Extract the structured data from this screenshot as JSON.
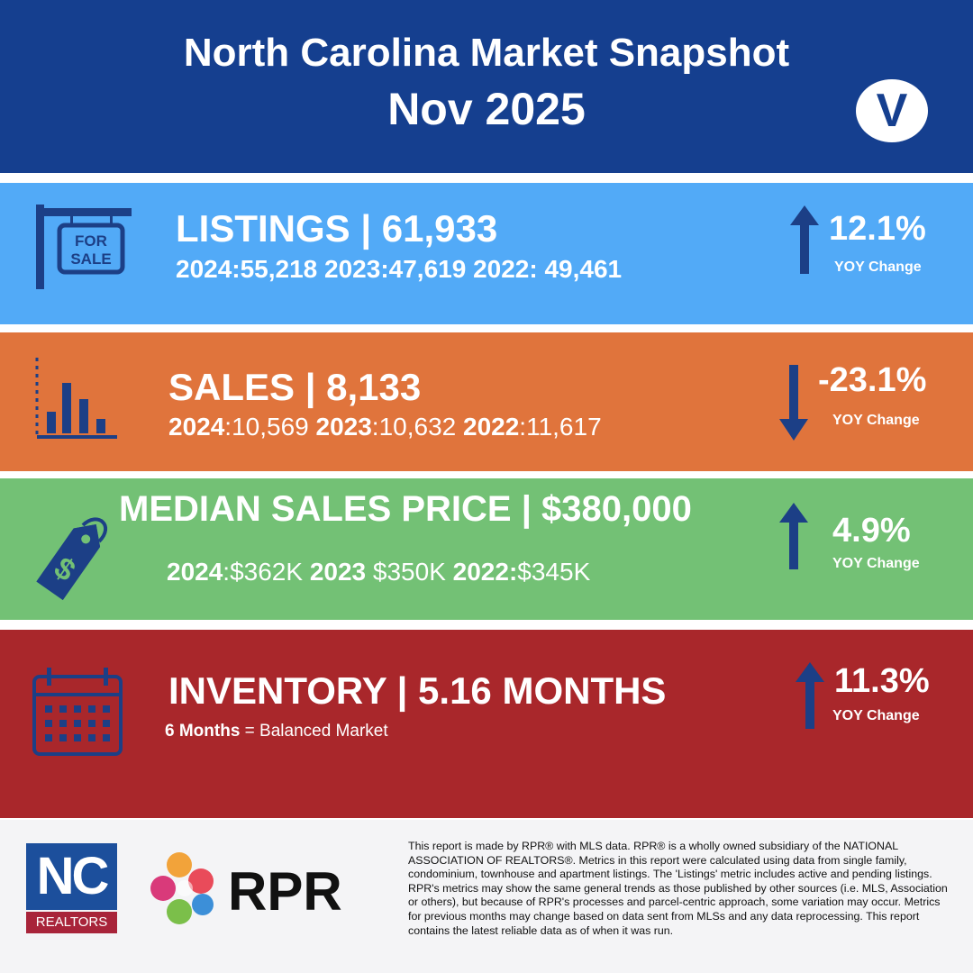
{
  "header": {
    "title": "North Carolina Market Snapshot",
    "date": "Nov 2025",
    "logo_letter": "V"
  },
  "listings": {
    "headline": "LISTINGS | 61,933",
    "history": "2024:55,218 2023:47,619 2022: 49,461",
    "change": "12.1%",
    "change_label": "YOY Change",
    "direction": "up",
    "icon": "for-sale-sign-icon",
    "sign_line1": "FOR",
    "sign_line2": "SALE",
    "color": "#52aaf7"
  },
  "sales": {
    "headline": "SALES | 8,133",
    "history": [
      {
        "year": "2024",
        "value": ":10,569 "
      },
      {
        "year": "2023",
        "value": ":10,632 "
      },
      {
        "year": "2022",
        "value": ":11,617"
      }
    ],
    "change": "-23.1%",
    "change_label": "YOY Change",
    "direction": "down",
    "icon": "bar-chart-icon",
    "color": "#e0743c"
  },
  "median_price": {
    "headline": "MEDIAN SALES PRICE | $380,000",
    "history": [
      {
        "year": "2024",
        "value": ":$362K "
      },
      {
        "year": "2023",
        "value": " $350K  "
      },
      {
        "year": "2022:",
        "value": "$345K"
      }
    ],
    "change": "4.9%",
    "change_label": "YOY Change",
    "direction": "up",
    "icon": "price-tag-icon",
    "tag_symbol": "$",
    "color": "#73c175"
  },
  "inventory": {
    "headline": "INVENTORY | 5.16 MONTHS",
    "note_bold": "6 Months",
    "note_rest": " = Balanced Market",
    "change": "11.3%",
    "change_label": "YOY Change",
    "direction": "up",
    "icon": "calendar-icon",
    "color": "#a9272b"
  },
  "footer": {
    "nc_logo_text": "NC",
    "nc_logo_sub": "REALTORS",
    "rpr_logo_text": "RPR",
    "disclaimer": "This report is made by RPR® with MLS data. RPR® is a wholly owned subsidiary of the NATIONAL ASSOCIATION OF REALTORS®. Metrics in this report were calculated using data from single family, condominium, townhouse and apartment listings. The 'Listings' metric includes active and pending listings. RPR's metrics may show the same general trends as those published by other sources (i.e. MLS, Association or others), but because of RPR's processes and parcel-centric approach, some variation may occur. Metrics for previous months may change based on data sent from MLSs and any data reprocessing. This report contains the latest reliable data as of when it was run."
  }
}
